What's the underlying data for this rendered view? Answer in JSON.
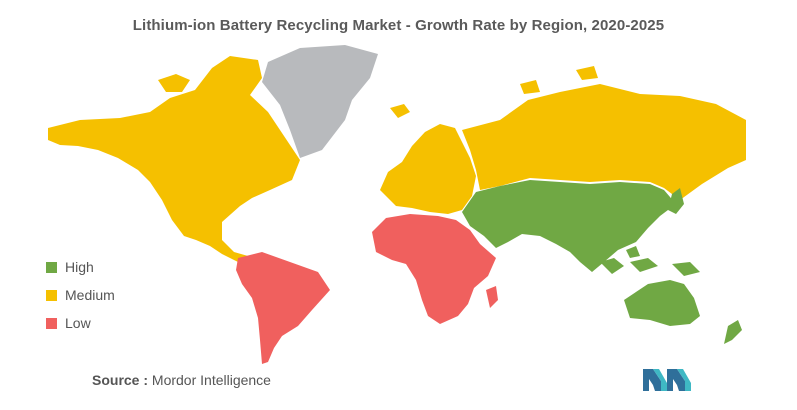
{
  "title": "Lithium-ion Battery Recycling Market - Growth Rate by Region, 2020-2025",
  "legend": [
    {
      "label": "High",
      "color": "#70a844"
    },
    {
      "label": "Medium",
      "color": "#f5c000"
    },
    {
      "label": "Low",
      "color": "#f0605e"
    }
  ],
  "no_data_color": "#b8babd",
  "source": {
    "label": "Source :",
    "value": "Mordor Intelligence"
  },
  "regions": {
    "north_america": "Medium",
    "south_america": "Low",
    "europe": "Medium",
    "russia": "Medium",
    "africa": "Low",
    "middle_east": "High",
    "asia": "High",
    "oceania": "High",
    "greenland": "No data"
  }
}
